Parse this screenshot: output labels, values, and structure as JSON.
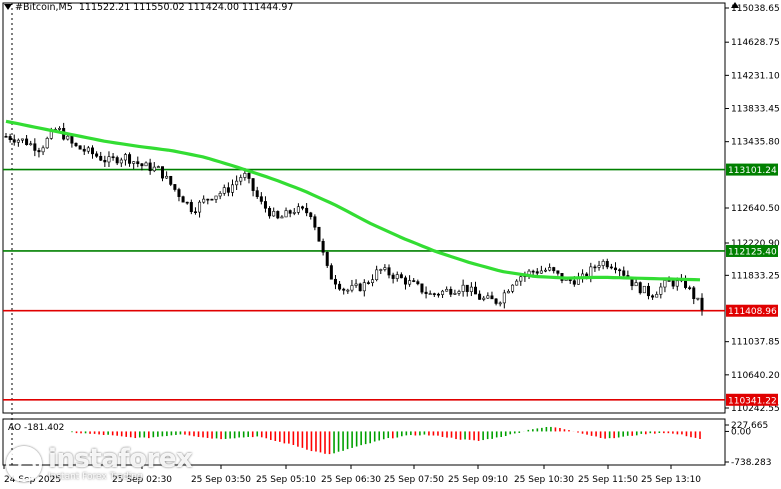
{
  "header": {
    "symbol": "#Bitcoin,M5",
    "ohlc": "111522.21 111550.02 111424.00 111444.97"
  },
  "watermark": {
    "name": "instaforex",
    "tagline": "Instant Forex Trading"
  },
  "colors": {
    "bull": "#00a000",
    "bear": "#ff0000",
    "ma": "#33dd33",
    "level_green": "#008000",
    "level_red": "#e00000",
    "grid": "#000000"
  },
  "chart_data": {
    "type": "candlestick",
    "ylim": [
      110242.55,
      115038.65
    ],
    "y_ticks": [
      "115038.65",
      "114628.75",
      "114231.10",
      "113833.45",
      "113435.80",
      "113101.24",
      "112640.50",
      "112220.90",
      "112125.40",
      "111833.25",
      "111408.96",
      "111037.85",
      "110640.20",
      "110341.22",
      "110242.55"
    ],
    "x_ticks": [
      "24 Sep 2025",
      "25 Sep 02:30",
      "25 Sep 03:50",
      "25 Sep 05:10",
      "25 Sep 06:30",
      "25 Sep 07:50",
      "25 Sep 09:10",
      "25 Sep 10:30",
      "25 Sep 11:50",
      "25 Sep 13:10"
    ],
    "levels": [
      {
        "value": 113101.24,
        "label": "113101.24",
        "color": "green"
      },
      {
        "value": 112125.4,
        "label": "112125.40",
        "color": "green"
      },
      {
        "value": 111408.96,
        "label": "111408.96",
        "color": "red"
      },
      {
        "value": 110341.22,
        "label": "110341.22",
        "color": "red"
      }
    ],
    "close_anchors": [
      113500,
      113450,
      113350,
      113600,
      113380,
      113300,
      113200,
      113260,
      113150,
      113100,
      112850,
      112620,
      112780,
      112850,
      113050,
      112700,
      112500,
      112620,
      112580,
      111850,
      111650,
      111700,
      111900,
      111820,
      111720,
      111600,
      111650,
      111700,
      111550,
      111520,
      111800,
      111880,
      111900,
      111760,
      111800,
      112000,
      111950,
      111720,
      111600,
      111750,
      111730,
      111440
    ],
    "ma_anchors": [
      113680,
      113600,
      113520,
      113440,
      113380,
      113330,
      113250,
      113130,
      113000,
      112850,
      112670,
      112460,
      112280,
      112120,
      111990,
      111880,
      111820,
      111800,
      111810,
      111800,
      111790,
      111780
    ],
    "candle_count": 170,
    "ao": {
      "label": "AO -181.402",
      "ylim": [
        -738.283,
        227.665
      ],
      "y_ticks": [
        "227.665",
        "0.00",
        "-738.283"
      ],
      "anchors": [
        -25,
        -60,
        -90,
        -140,
        -160,
        -110,
        -60,
        -140,
        -180,
        -150,
        -120,
        -230,
        -330,
        -470,
        -560,
        -420,
        -300,
        -180,
        -110,
        -80,
        -120,
        -190,
        -230,
        -150,
        -50,
        70,
        110,
        30,
        -90,
        -180,
        -120,
        -60,
        -30,
        -80,
        -181
      ]
    }
  }
}
